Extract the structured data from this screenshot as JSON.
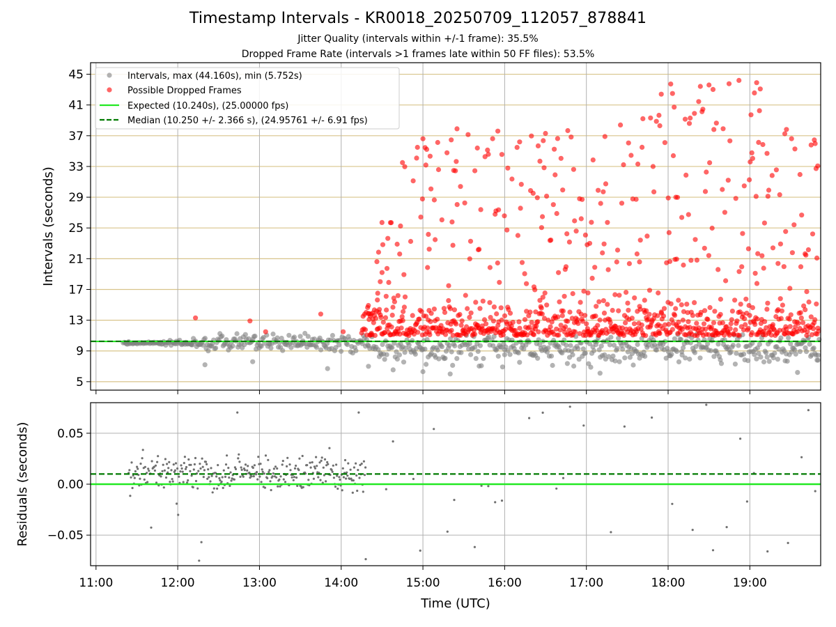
{
  "chart_data": [
    {
      "type": "scatter",
      "title": "Timestamp Intervals - KR0018_20250709_112057_878841",
      "subtitle_1": "Jitter Quality (intervals within +/-1 frame): 35.5%",
      "subtitle_2": "Dropped Frame Rate (intervals >1 frames late within 50 FF files): 53.5%",
      "ylabel": "Intervals (seconds)",
      "xlabel": "",
      "ylim": [
        3.9,
        46.5
      ],
      "xlim": [
        "10:56",
        "19:52"
      ],
      "yticks": [
        "5",
        "9",
        "13",
        "17",
        "21",
        "25",
        "29",
        "33",
        "37",
        "41",
        "45"
      ],
      "grid": "both, horizontal lines tan",
      "legend_placement": "top-left",
      "series": [
        {
          "name": "Intervals, max (44.160s), min (5.752s)",
          "color": "#808080",
          "marker": "circle"
        },
        {
          "name": "Possible Dropped Frames",
          "color": "#ff0000",
          "marker": "circle"
        },
        {
          "name": "Expected (10.240s), (25.00000 fps)",
          "color": "#22e822",
          "style": "solid",
          "value": 10.24
        },
        {
          "name": "Median (10.250 +/- 2.366 s), (24.95761 +/- 6.91 fps)",
          "color": "#007a00",
          "style": "dashed",
          "value": 10.25
        }
      ],
      "summary": {
        "max_interval": 44.16,
        "min_interval": 5.752,
        "expected_interval": 10.24,
        "expected_fps": 25.0,
        "median_interval": 10.25,
        "median_std": 2.366,
        "median_fps": 24.95761,
        "fps_std": 6.91,
        "jitter_quality_pct": 35.5,
        "dropped_frame_rate_pct": 53.5
      },
      "sample_points": {
        "gray": [
          [
            "11:24",
            10.2
          ],
          [
            "11:45",
            10.1
          ],
          [
            "12:10",
            9.8
          ],
          [
            "12:20",
            7.2
          ],
          [
            "12:55",
            7.6
          ],
          [
            "13:30",
            10.9
          ],
          [
            "13:50",
            6.7
          ],
          [
            "14:20",
            7.0
          ],
          [
            "15:00",
            6.3
          ],
          [
            "15:20",
            6.0
          ],
          [
            "16:00",
            8.5
          ],
          [
            "17:10",
            6.1
          ],
          [
            "18:10",
            8.9
          ],
          [
            "19:35",
            6.2
          ],
          [
            "19:50",
            7.8
          ]
        ],
        "red": [
          [
            "12:13",
            13.3
          ],
          [
            "12:53",
            12.9
          ],
          [
            "13:45",
            13.8
          ],
          [
            "14:30",
            19.2
          ],
          [
            "14:45",
            33.5
          ],
          [
            "15:00",
            36.6
          ],
          [
            "15:25",
            37.9
          ],
          [
            "15:55",
            37.6
          ],
          [
            "16:30",
            37.3
          ],
          [
            "17:25",
            38.4
          ],
          [
            "17:55",
            42.4
          ],
          [
            "18:30",
            43.6
          ],
          [
            "18:52",
            44.2
          ],
          [
            "19:05",
            43.9
          ],
          [
            "19:45",
            35.8
          ]
        ]
      }
    },
    {
      "type": "scatter",
      "ylabel": "Residuals (seconds)",
      "xlabel": "Time (UTC)",
      "ylim": [
        -0.08,
        0.08
      ],
      "xlim": [
        "10:56",
        "19:52"
      ],
      "yticks": [
        "0.05",
        "0.00",
        "−0.05"
      ],
      "xticks": [
        "11:00",
        "12:00",
        "13:00",
        "14:00",
        "15:00",
        "16:00",
        "17:00",
        "18:00",
        "19:00"
      ],
      "grid": "both",
      "series": [
        {
          "name": "",
          "color": "#808080",
          "marker": "dot"
        },
        {
          "name": "",
          "color": "#22e822",
          "style": "solid",
          "value": 0.0
        },
        {
          "name": "",
          "color": "#007a00",
          "style": "dashed",
          "value": 0.01
        }
      ]
    }
  ]
}
